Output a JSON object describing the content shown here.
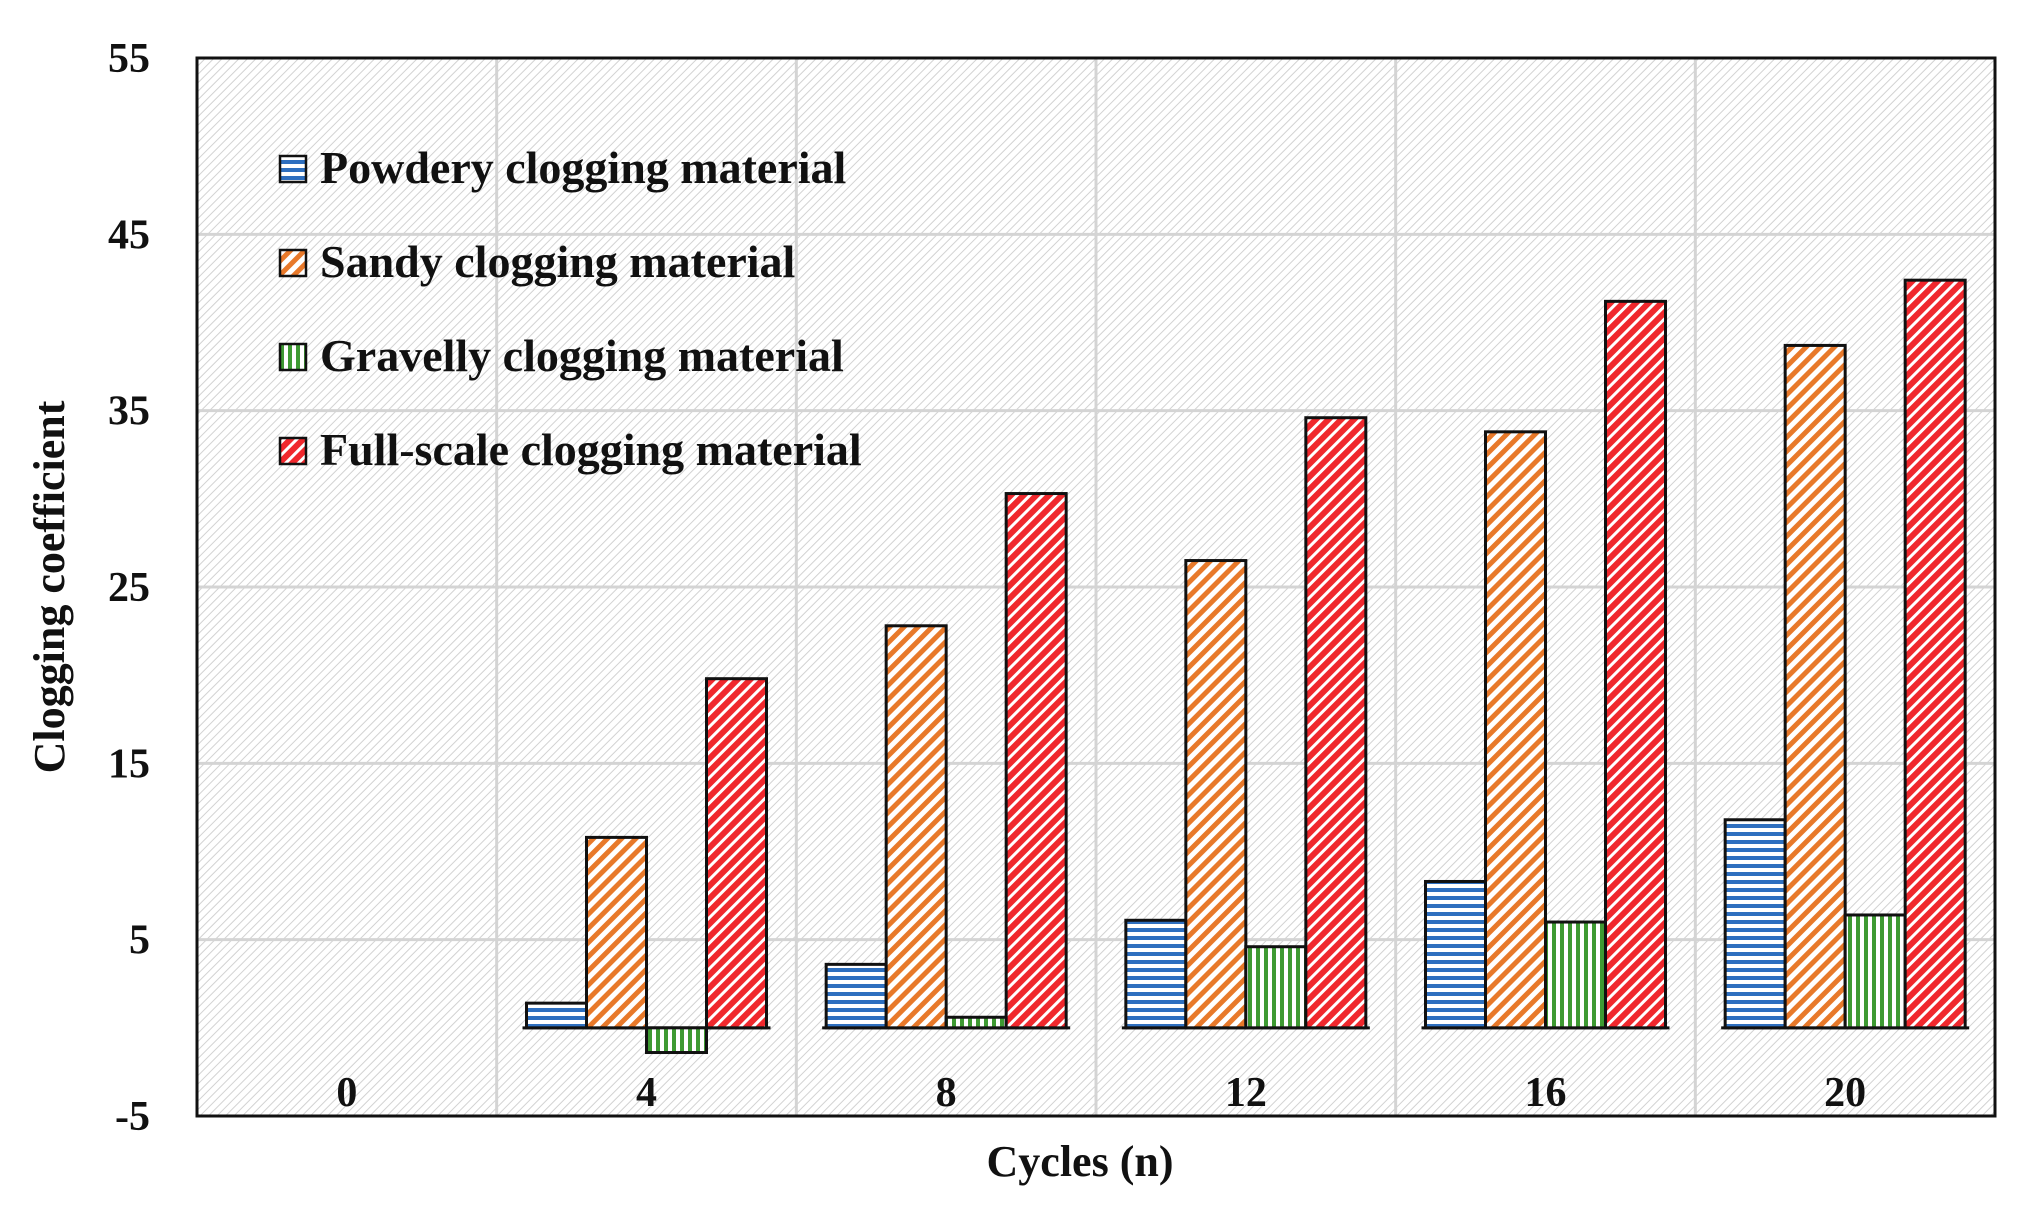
{
  "chart_data": {
    "type": "bar",
    "title": "",
    "xlabel": "Cycles (n)",
    "ylabel": "Clogging coefficient",
    "categories": [
      "0",
      "4",
      "8",
      "12",
      "16",
      "20"
    ],
    "ylim": [
      -5,
      55
    ],
    "yticks": [
      -5,
      5,
      15,
      25,
      35,
      45,
      55
    ],
    "grid": true,
    "legend_position": "top-left",
    "series": [
      {
        "name": "Powdery clogging material",
        "color": "#2e6fbf",
        "pattern": "horizontal",
        "values": [
          null,
          1.4,
          3.6,
          6.1,
          8.3,
          11.8
        ]
      },
      {
        "name": "Sandy clogging material",
        "color": "#e8792a",
        "pattern": "diagonal",
        "values": [
          null,
          10.8,
          22.8,
          26.5,
          33.8,
          38.7
        ]
      },
      {
        "name": "Gravelly clogging material",
        "color": "#3e9a32",
        "pattern": "vertical",
        "values": [
          null,
          -1.4,
          0.6,
          4.6,
          6.0,
          6.4
        ]
      },
      {
        "name": "Full-scale clogging material",
        "color": "#f0282d",
        "pattern": "diagonal-dense",
        "values": [
          null,
          19.8,
          30.3,
          34.6,
          41.2,
          42.4
        ]
      }
    ]
  }
}
